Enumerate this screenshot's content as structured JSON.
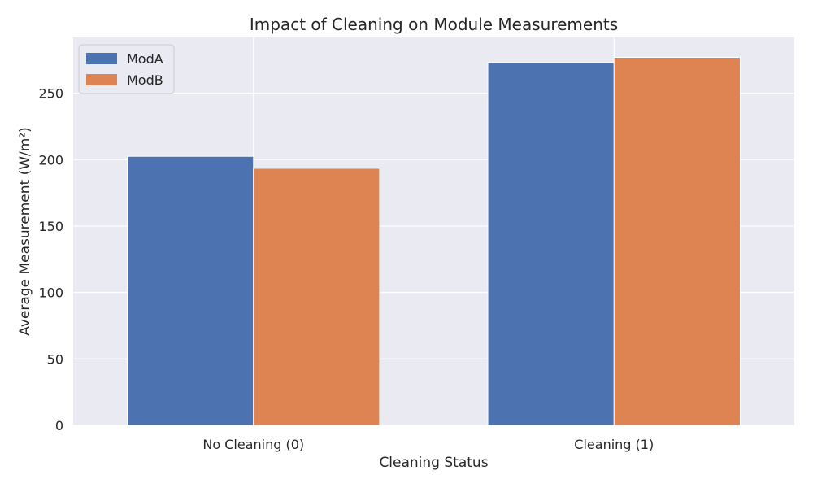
{
  "chart_data": {
    "type": "bar",
    "title": "Impact of Cleaning on Module Measurements",
    "xlabel": "Cleaning Status",
    "ylabel": "Average Measurement (W/m²)",
    "categories": [
      "No Cleaning (0)",
      "Cleaning (1)"
    ],
    "series": [
      {
        "name": "ModA",
        "values": [
          202.5,
          273.0
        ],
        "color": "#4c72b0"
      },
      {
        "name": "ModB",
        "values": [
          193.5,
          277.0
        ],
        "color": "#dd8452"
      }
    ],
    "ylim": [
      0,
      292
    ],
    "yticks": [
      0,
      50,
      100,
      150,
      200,
      250
    ],
    "grid": true,
    "legend_position": "top-left",
    "background": "#eaeaf2",
    "grid_color": "#ffffff"
  }
}
